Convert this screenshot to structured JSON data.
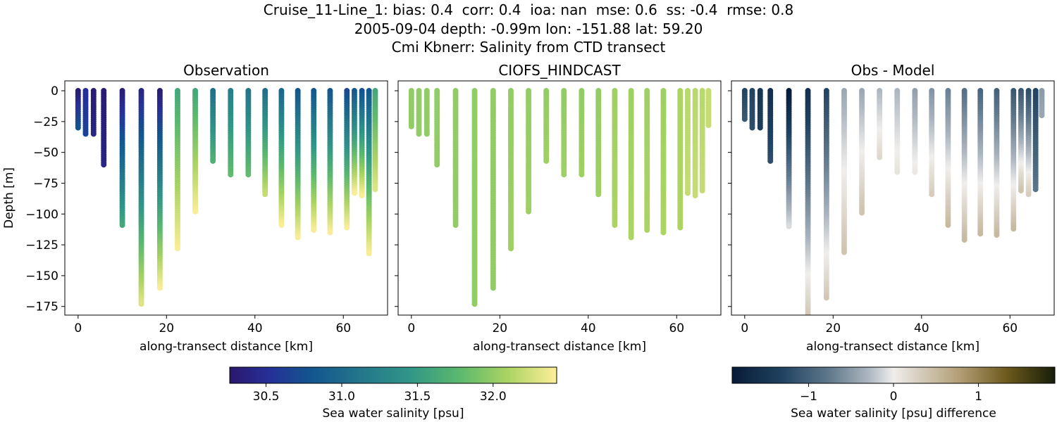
{
  "figure": {
    "title_lines": [
      "Cruise_11-Line_1: bias: 0.4  corr: 0.4  ioa: nan  mse: 0.6  ss: -0.4  rmse: 0.8",
      "2005-09-04 depth: -0.99m lon: -151.88 lat: 59.20",
      "Cmi Kbnerr: Salinity from CTD transect"
    ]
  },
  "chart_data": [
    {
      "type": "scatter",
      "title": "Observation",
      "xlabel": "along-transect distance [km]",
      "ylabel": "Depth [m]",
      "xlim": [
        -3,
        70
      ],
      "ylim": [
        -182,
        8
      ],
      "xticks": [
        0,
        20,
        40,
        60
      ],
      "yticks": [
        0,
        -25,
        -50,
        -75,
        -100,
        -125,
        -150,
        -175
      ],
      "colormap": "haline",
      "colorbar_label": "Sea water salinity [psu]",
      "color_range": [
        30.26,
        32.42
      ],
      "colorbar_ticks": [
        30.5,
        31.0,
        31.5,
        32.0
      ],
      "profiles": [
        {
          "x": 0.0,
          "bottom": -30,
          "top_value": 30.3,
          "bottom_value": 30.8
        },
        {
          "x": 1.7,
          "bottom": -35,
          "top_value": 30.5,
          "bottom_value": 30.65
        },
        {
          "x": 3.5,
          "bottom": -35,
          "top_value": 30.3,
          "bottom_value": 30.4
        },
        {
          "x": 5.8,
          "bottom": -60,
          "top_value": 30.3,
          "bottom_value": 30.4
        },
        {
          "x": 10.0,
          "bottom": -109,
          "top_value": 30.3,
          "bottom_value": 31.6
        },
        {
          "x": 14.3,
          "bottom": -173,
          "top_value": 30.4,
          "bottom_value": 32.3
        },
        {
          "x": 18.5,
          "bottom": -160,
          "top_value": 30.3,
          "bottom_value": 32.4
        },
        {
          "x": 22.5,
          "bottom": -128,
          "top_value": 31.6,
          "bottom_value": 32.4
        },
        {
          "x": 26.5,
          "bottom": -98,
          "top_value": 31.6,
          "bottom_value": 32.4
        },
        {
          "x": 30.5,
          "bottom": -57,
          "top_value": 31.05,
          "bottom_value": 31.7
        },
        {
          "x": 34.5,
          "bottom": -68,
          "top_value": 31.2,
          "bottom_value": 31.8
        },
        {
          "x": 38.5,
          "bottom": -68,
          "top_value": 31.1,
          "bottom_value": 31.8
        },
        {
          "x": 42.3,
          "bottom": -84,
          "top_value": 31.05,
          "bottom_value": 32.2
        },
        {
          "x": 46.0,
          "bottom": -109,
          "top_value": 30.95,
          "bottom_value": 32.4
        },
        {
          "x": 49.7,
          "bottom": -119,
          "top_value": 30.8,
          "bottom_value": 32.4
        },
        {
          "x": 53.3,
          "bottom": -113,
          "top_value": 30.8,
          "bottom_value": 32.4
        },
        {
          "x": 57.0,
          "bottom": -115,
          "top_value": 30.8,
          "bottom_value": 32.4
        },
        {
          "x": 60.8,
          "bottom": -111,
          "top_value": 30.7,
          "bottom_value": 32.4
        },
        {
          "x": 62.5,
          "bottom": -83,
          "top_value": 30.8,
          "bottom_value": 32.4
        },
        {
          "x": 64.2,
          "bottom": -85,
          "top_value": 30.75,
          "bottom_value": 32.4
        },
        {
          "x": 65.8,
          "bottom": -132,
          "top_value": 30.8,
          "bottom_value": 32.4
        },
        {
          "x": 67.2,
          "bottom": -80,
          "top_value": 31.6,
          "bottom_value": 32.3
        }
      ]
    },
    {
      "type": "scatter",
      "title": "CIOFS_HINDCAST",
      "xlabel": "along-transect distance [km]",
      "ylabel": "",
      "xlim": [
        -3,
        70
      ],
      "ylim": [
        -182,
        8
      ],
      "xticks": [
        0,
        20,
        40,
        60
      ],
      "colormap": "haline",
      "color_range": [
        30.26,
        32.42
      ],
      "profiles": [
        {
          "x": 0.0,
          "bottom": -29,
          "top_value": 32.0,
          "bottom_value": 32.0
        },
        {
          "x": 1.7,
          "bottom": -35,
          "top_value": 32.0,
          "bottom_value": 32.0
        },
        {
          "x": 3.5,
          "bottom": -35,
          "top_value": 32.0,
          "bottom_value": 32.0
        },
        {
          "x": 5.8,
          "bottom": -60,
          "top_value": 32.0,
          "bottom_value": 32.0
        },
        {
          "x": 10.0,
          "bottom": -109,
          "top_value": 32.0,
          "bottom_value": 32.0
        },
        {
          "x": 14.3,
          "bottom": -173,
          "top_value": 32.0,
          "bottom_value": 32.0
        },
        {
          "x": 18.5,
          "bottom": -160,
          "top_value": 32.0,
          "bottom_value": 32.0
        },
        {
          "x": 22.5,
          "bottom": -128,
          "top_value": 32.0,
          "bottom_value": 32.05
        },
        {
          "x": 26.5,
          "bottom": -98,
          "top_value": 32.0,
          "bottom_value": 32.05
        },
        {
          "x": 30.5,
          "bottom": -57,
          "top_value": 32.0,
          "bottom_value": 32.05
        },
        {
          "x": 34.5,
          "bottom": -68,
          "top_value": 32.0,
          "bottom_value": 32.05
        },
        {
          "x": 38.5,
          "bottom": -68,
          "top_value": 32.0,
          "bottom_value": 32.05
        },
        {
          "x": 42.3,
          "bottom": -84,
          "top_value": 32.0,
          "bottom_value": 32.05
        },
        {
          "x": 46.0,
          "bottom": -109,
          "top_value": 32.05,
          "bottom_value": 32.1
        },
        {
          "x": 49.7,
          "bottom": -119,
          "top_value": 32.05,
          "bottom_value": 32.1
        },
        {
          "x": 53.3,
          "bottom": -113,
          "top_value": 32.05,
          "bottom_value": 32.1
        },
        {
          "x": 57.0,
          "bottom": -115,
          "top_value": 32.05,
          "bottom_value": 32.1
        },
        {
          "x": 60.8,
          "bottom": -111,
          "top_value": 32.1,
          "bottom_value": 32.1
        },
        {
          "x": 62.5,
          "bottom": -83,
          "top_value": 32.15,
          "bottom_value": 32.2
        },
        {
          "x": 64.2,
          "bottom": -85,
          "top_value": 32.15,
          "bottom_value": 32.2
        },
        {
          "x": 65.8,
          "bottom": -81,
          "top_value": 32.15,
          "bottom_value": 32.2
        },
        {
          "x": 67.2,
          "bottom": -28,
          "top_value": 32.2,
          "bottom_value": 32.2
        }
      ]
    },
    {
      "type": "scatter",
      "title": "Obs - Model",
      "xlabel": "along-transect distance [km]",
      "ylabel": "",
      "xlim": [
        -3,
        70
      ],
      "ylim": [
        -182,
        8
      ],
      "xticks": [
        0,
        20,
        40,
        60
      ],
      "colormap": "diff",
      "colorbar_label": "Sea water salinity [psu] difference",
      "color_range": [
        -1.9,
        1.9
      ],
      "colorbar_ticks": [
        -1,
        0,
        1
      ],
      "profiles": [
        {
          "x": 0.0,
          "bottom": -23,
          "top_value": -1.3,
          "bottom_value": -1.1
        },
        {
          "x": 1.7,
          "bottom": -30,
          "top_value": -1.3,
          "bottom_value": -1.2
        },
        {
          "x": 3.5,
          "bottom": -30,
          "top_value": -1.5,
          "bottom_value": -1.4
        },
        {
          "x": 5.8,
          "bottom": -57,
          "top_value": -1.6,
          "bottom_value": -1.2
        },
        {
          "x": 10.0,
          "bottom": -110,
          "top_value": -1.9,
          "bottom_value": -0.1
        },
        {
          "x": 14.3,
          "bottom": -182,
          "top_value": -1.6,
          "bottom_value": 0.35
        },
        {
          "x": 18.5,
          "bottom": -168,
          "top_value": -1.3,
          "bottom_value": 0.35
        },
        {
          "x": 22.5,
          "bottom": -131,
          "top_value": -0.4,
          "bottom_value": 0.4
        },
        {
          "x": 26.5,
          "bottom": -99,
          "top_value": -0.4,
          "bottom_value": 0.4
        },
        {
          "x": 30.5,
          "bottom": -54,
          "top_value": -0.3,
          "bottom_value": 0.2
        },
        {
          "x": 34.5,
          "bottom": -66,
          "top_value": -0.3,
          "bottom_value": 0.1
        },
        {
          "x": 38.5,
          "bottom": -66,
          "top_value": -0.45,
          "bottom_value": 0.05
        },
        {
          "x": 42.3,
          "bottom": -84,
          "top_value": -0.55,
          "bottom_value": 0.3
        },
        {
          "x": 46.0,
          "bottom": -109,
          "top_value": -0.7,
          "bottom_value": 0.5
        },
        {
          "x": 49.7,
          "bottom": -121,
          "top_value": -0.85,
          "bottom_value": 0.5
        },
        {
          "x": 53.3,
          "bottom": -116,
          "top_value": -0.95,
          "bottom_value": 0.5
        },
        {
          "x": 57.0,
          "bottom": -117,
          "top_value": -1.0,
          "bottom_value": 0.5
        },
        {
          "x": 60.8,
          "bottom": -112,
          "top_value": -1.1,
          "bottom_value": 0.5
        },
        {
          "x": 62.5,
          "bottom": -81,
          "top_value": -1.1,
          "bottom_value": 0.4
        },
        {
          "x": 64.2,
          "bottom": -84,
          "top_value": -1.2,
          "bottom_value": 0.3
        },
        {
          "x": 65.8,
          "bottom": -80,
          "top_value": -1.3,
          "bottom_value": -0.8
        },
        {
          "x": 67.2,
          "bottom": -20,
          "top_value": -0.5,
          "bottom_value": -0.4
        }
      ]
    }
  ]
}
